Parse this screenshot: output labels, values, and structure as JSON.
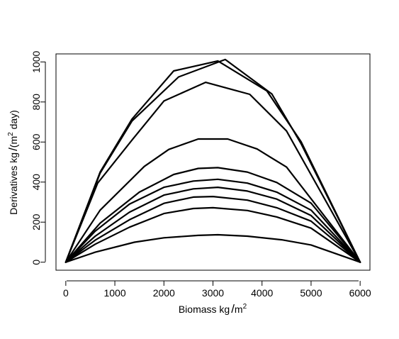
{
  "chart_data": {
    "type": "line",
    "title": "",
    "xlabel": {
      "prefix": "Biomass kg",
      "unit": "m",
      "exponent": "2"
    },
    "ylabel": {
      "prefix": "Derivatives kg",
      "unit_open": "(m",
      "exponent": "2",
      "unit_close": " day)"
    },
    "xlim": [
      -200,
      6200
    ],
    "ylim": [
      -40,
      1040
    ],
    "x_ticks": [
      0,
      1000,
      2000,
      3000,
      4000,
      5000,
      6000
    ],
    "x_tick_labels": [
      "0",
      "1000",
      "2000",
      "3000",
      "4000",
      "5000",
      "6000"
    ],
    "y_ticks": [
      0,
      200,
      400,
      600,
      800,
      1000
    ],
    "y_tick_labels": [
      "0",
      "200",
      "400",
      "600",
      "800",
      "1000"
    ],
    "grid": false,
    "legend": "none",
    "line_color": "#000000",
    "series": [
      {
        "x": [
          0,
          700,
          1350,
          2200,
          3100,
          4100,
          4800,
          6000
        ],
        "values": [
          0,
          450,
          715,
          955,
          1005,
          855,
          600,
          0
        ]
      },
      {
        "x": [
          0,
          700,
          1350,
          2300,
          3250,
          4200,
          4800,
          6000
        ],
        "values": [
          0,
          445,
          705,
          925,
          1012,
          840,
          590,
          0
        ]
      },
      {
        "x": [
          0,
          650,
          1350,
          2000,
          2850,
          3750,
          4500,
          6000
        ],
        "values": [
          0,
          395,
          610,
          805,
          898,
          838,
          655,
          0
        ]
      },
      {
        "x": [
          0,
          700,
          1600,
          2100,
          2700,
          3300,
          3900,
          4500,
          6000
        ],
        "values": [
          0,
          260,
          478,
          563,
          615,
          615,
          565,
          475,
          0
        ]
      },
      {
        "x": [
          0,
          700,
          1500,
          2200,
          2700,
          3100,
          3700,
          4300,
          5000,
          6000
        ],
        "values": [
          0,
          195,
          350,
          438,
          468,
          472,
          450,
          398,
          295,
          0
        ]
      },
      {
        "x": [
          0,
          600,
          1300,
          2000,
          2600,
          3100,
          3700,
          4300,
          5000,
          6000
        ],
        "values": [
          0,
          155,
          290,
          374,
          405,
          414,
          395,
          350,
          260,
          0
        ]
      },
      {
        "x": [
          0,
          600,
          1300,
          2000,
          2600,
          3100,
          3700,
          4300,
          5000,
          6000
        ],
        "values": [
          0,
          130,
          250,
          335,
          366,
          374,
          355,
          315,
          233,
          0
        ]
      },
      {
        "x": [
          0,
          600,
          1300,
          2000,
          2600,
          3000,
          3700,
          4300,
          5000,
          6000
        ],
        "values": [
          0,
          110,
          212,
          294,
          325,
          328,
          310,
          272,
          205,
          0
        ]
      },
      {
        "x": [
          0,
          600,
          1300,
          2000,
          2600,
          3000,
          3700,
          4300,
          5000,
          6000
        ],
        "values": [
          0,
          90,
          175,
          243,
          268,
          272,
          258,
          226,
          170,
          0
        ]
      },
      {
        "x": [
          0,
          600,
          1400,
          2000,
          2700,
          3100,
          3700,
          4400,
          5000,
          6000
        ],
        "values": [
          0,
          50,
          100,
          122,
          134,
          137,
          130,
          112,
          86,
          0
        ]
      }
    ]
  }
}
